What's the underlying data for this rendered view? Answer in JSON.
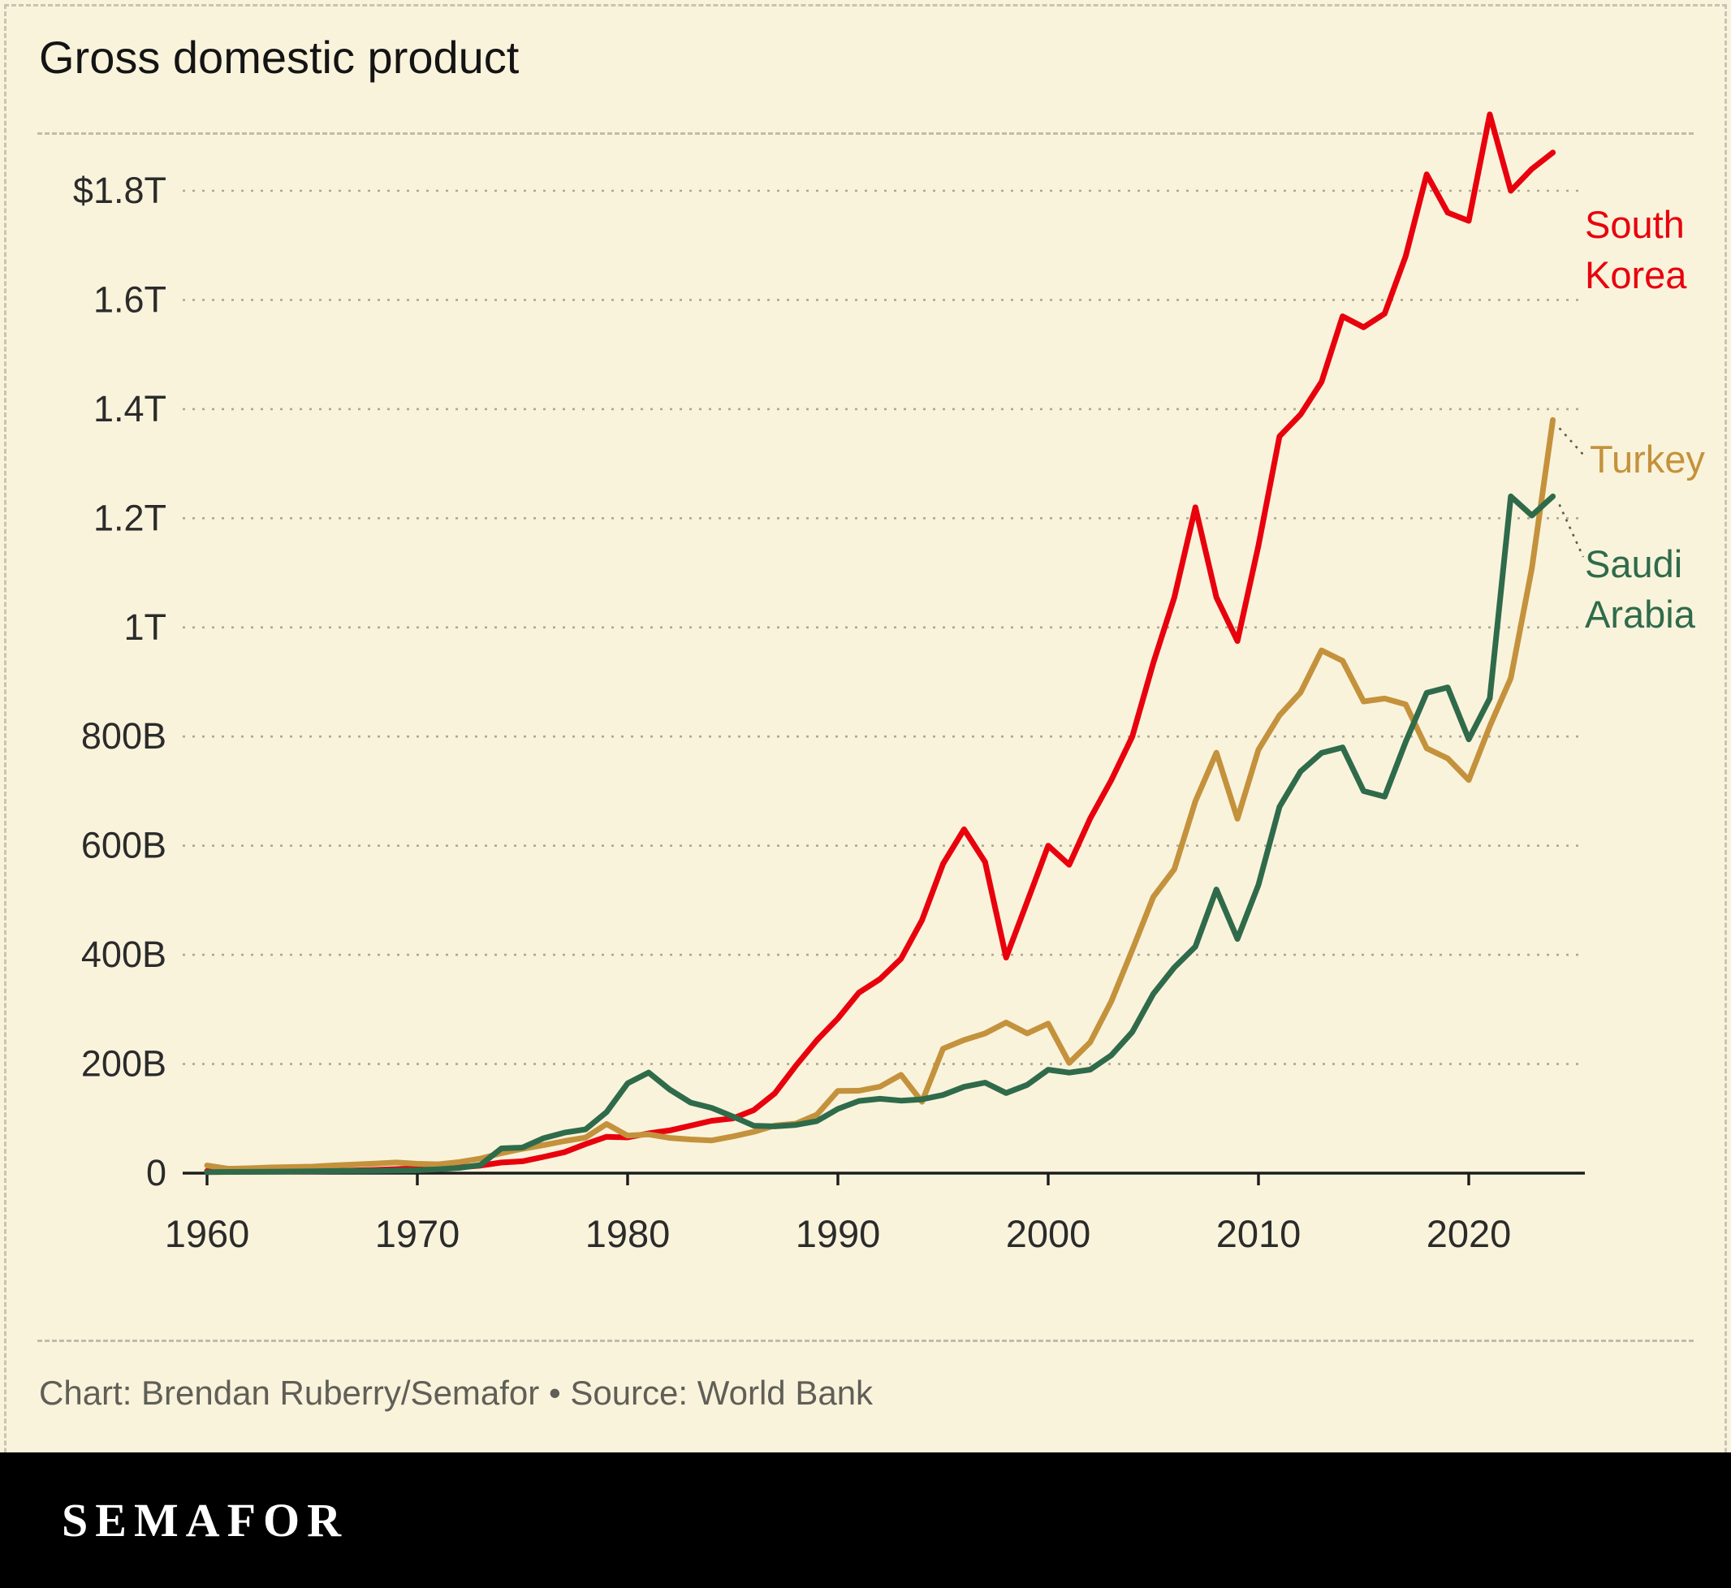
{
  "header": {
    "title": "Gross domestic product"
  },
  "footer": {
    "credit": "Chart: Brendan Ruberry/Semafor • Source: World Bank",
    "logo": "SEMAFOR"
  },
  "colors": {
    "background": "#FAF3DC",
    "south_korea": "#E8000D",
    "turkey": "#C4923C",
    "saudi_arabia": "#2F6B4A",
    "gridline": "#ABA896",
    "axis": "#1C1C1C",
    "credit_text": "#5F5F57",
    "logo_bar": "#000000"
  },
  "chart_data": {
    "type": "line",
    "title": "Gross domestic product",
    "unit": "current US$, billions",
    "grid": "dashed horizontal",
    "legend_position": "right-of-line-ends",
    "xlim": [
      1960,
      2025
    ],
    "ylim": [
      0,
      2000
    ],
    "xticks": [
      1960,
      1970,
      1980,
      1990,
      2000,
      2010,
      2020
    ],
    "yticks": [
      {
        "value": 0,
        "label": "0"
      },
      {
        "value": 200,
        "label": "200B"
      },
      {
        "value": 400,
        "label": "400B"
      },
      {
        "value": 600,
        "label": "600B"
      },
      {
        "value": 800,
        "label": "800B"
      },
      {
        "value": 1000,
        "label": "1T"
      },
      {
        "value": 1200,
        "label": "1.2T"
      },
      {
        "value": 1400,
        "label": "1.4T"
      },
      {
        "value": 1600,
        "label": "1.6T"
      },
      {
        "value": 1800,
        "label": "$1.8T"
      }
    ],
    "x": [
      1960,
      1961,
      1962,
      1963,
      1964,
      1965,
      1966,
      1967,
      1968,
      1969,
      1970,
      1971,
      1972,
      1973,
      1974,
      1975,
      1976,
      1977,
      1978,
      1979,
      1980,
      1981,
      1982,
      1983,
      1984,
      1985,
      1986,
      1987,
      1988,
      1989,
      1990,
      1991,
      1992,
      1993,
      1994,
      1995,
      1996,
      1997,
      1998,
      1999,
      2000,
      2001,
      2002,
      2003,
      2004,
      2005,
      2006,
      2007,
      2008,
      2009,
      2010,
      2011,
      2012,
      2013,
      2014,
      2015,
      2016,
      2017,
      2018,
      2019,
      2020,
      2021,
      2022,
      2023,
      2024
    ],
    "series": [
      {
        "name": "South Korea",
        "color": "#E8000D",
        "values": [
          4.0,
          2.4,
          2.8,
          3.9,
          3.5,
          3.1,
          3.9,
          4.8,
          6.0,
          7.5,
          9.0,
          9.9,
          10.8,
          13.9,
          19.5,
          21.7,
          29.8,
          38.4,
          53.2,
          66.6,
          65.4,
          72.9,
          78.3,
          87.0,
          95.9,
          100.3,
          115.5,
          146.1,
          196.8,
          243.5,
          283.4,
          330.7,
          355.5,
          392.7,
          463.6,
          566.6,
          630.0,
          570.0,
          395.0,
          497.0,
          600.0,
          565.0,
          650.0,
          720.0,
          800.0,
          935.0,
          1055.0,
          1220.0,
          1055.0,
          975.0,
          1150.0,
          1350.0,
          1390.0,
          1450.0,
          1570.0,
          1550.0,
          1575.0,
          1680.0,
          1830.0,
          1760.0,
          1745.0,
          1940.0,
          1800.0,
          1840.0,
          1870.0
        ]
      },
      {
        "name": "Turkey",
        "color": "#C4923C",
        "values": [
          14.0,
          8.0,
          8.9,
          10.4,
          11.2,
          11.9,
          14.1,
          15.7,
          17.5,
          19.5,
          17.1,
          16.2,
          20.4,
          26.6,
          36.6,
          44.6,
          51.3,
          58.7,
          65.1,
          90.0,
          68.8,
          71.0,
          64.5,
          61.7,
          59.9,
          67.2,
          75.7,
          87.2,
          90.8,
          107.1,
          150.7,
          151.0,
          158.5,
          180.2,
          130.7,
          228.0,
          244.0,
          256.0,
          276.0,
          256.0,
          274.0,
          202.0,
          240.0,
          314.6,
          408.9,
          506.3,
          557.1,
          681.3,
          770.4,
          649.3,
          776.0,
          838.8,
          880.6,
          957.8,
          938.9,
          864.3,
          869.7,
          858.9,
          778.5,
          759.9,
          720.3,
          819.0,
          907.1,
          1108.0,
          1380.0
        ]
      },
      {
        "name": "Saudi Arabia",
        "color": "#2F6B4A",
        "values": [
          2.0,
          2.2,
          2.4,
          2.7,
          3.0,
          3.4,
          3.9,
          4.2,
          4.3,
          4.7,
          5.4,
          7.2,
          9.7,
          14.9,
          45.4,
          46.8,
          64.0,
          74.2,
          80.2,
          111.9,
          164.5,
          184.3,
          153.2,
          129.2,
          119.6,
          103.9,
          86.9,
          85.7,
          88.3,
          95.3,
          117.6,
          132.2,
          136.3,
          132.8,
          135.2,
          143.3,
          158.1,
          165.9,
          146.8,
          161.7,
          189.5,
          184.1,
          189.6,
          215.8,
          258.7,
          328.5,
          376.9,
          415.0,
          519.8,
          429.1,
          528.2,
          671.2,
          735.9,
          770.0,
          780.0,
          700.0,
          690.0,
          790.0,
          880.0,
          890.0,
          795.0,
          870.0,
          1240.0,
          1205.0,
          1240.0
        ]
      }
    ]
  }
}
